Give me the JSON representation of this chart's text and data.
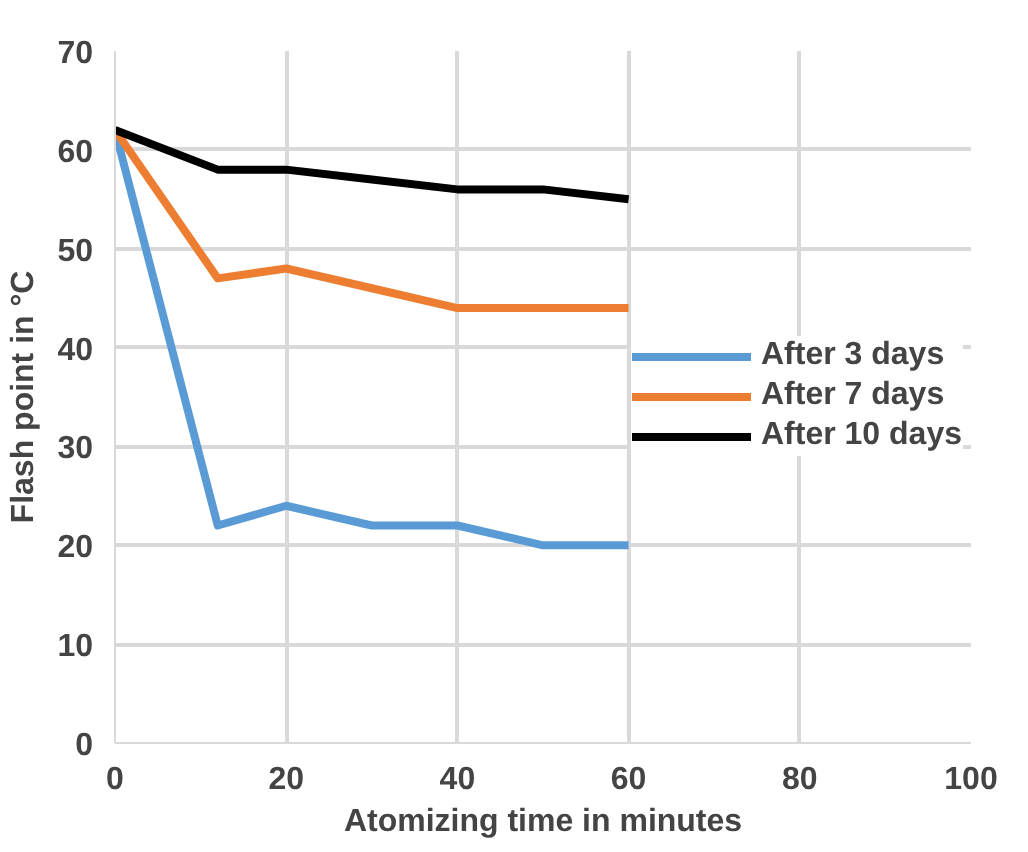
{
  "chart_data": {
    "type": "line",
    "xlabel": "Atomizing time in minutes",
    "ylabel": "Flash point in °C",
    "x": [
      0,
      12,
      20,
      30,
      40,
      50,
      60
    ],
    "series": [
      {
        "name": "After 3 days",
        "color": "#5b9bd5",
        "values": [
          62,
          22,
          24,
          22,
          22,
          20,
          20
        ]
      },
      {
        "name": "After 7 days",
        "color": "#ed7d31",
        "values": [
          62,
          47,
          48,
          46,
          44,
          44,
          44
        ]
      },
      {
        "name": "After 10 days",
        "color": "#000000",
        "values": [
          62,
          58,
          58,
          57,
          56,
          56,
          55
        ]
      }
    ],
    "xlim": [
      0,
      100
    ],
    "xticks": [
      0,
      20,
      40,
      60,
      80,
      100
    ],
    "ylim": [
      0,
      70
    ],
    "yticks": [
      0,
      10,
      20,
      30,
      40,
      50,
      60,
      70
    ],
    "grid": true,
    "legend": "right",
    "marker": "none",
    "line_style": "solid"
  }
}
